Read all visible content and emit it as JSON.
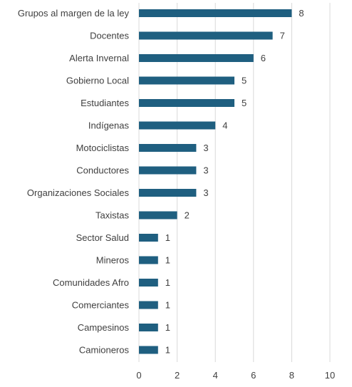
{
  "chart_data": {
    "type": "bar",
    "orientation": "horizontal",
    "title": "",
    "xlabel": "",
    "ylabel": "",
    "categories": [
      "Grupos al margen de la ley",
      "Docentes",
      "Alerta Invernal",
      "Gobierno Local",
      "Estudiantes",
      "Indígenas",
      "Motociclistas",
      "Conductores",
      "Organizaciones Sociales",
      "Taxistas",
      "Sector Salud",
      "Mineros",
      "Comunidades Afro",
      "Comerciantes",
      "Campesinos",
      "Camioneros"
    ],
    "values": [
      8,
      7,
      6,
      5,
      5,
      4,
      3,
      3,
      3,
      2,
      1,
      1,
      1,
      1,
      1,
      1
    ],
    "xlim": [
      0,
      10
    ],
    "xticks": [
      0,
      2,
      4,
      6,
      8,
      10
    ],
    "grid": true,
    "legend": "none",
    "data_labels": true,
    "bar_color": "#1f5f80"
  }
}
